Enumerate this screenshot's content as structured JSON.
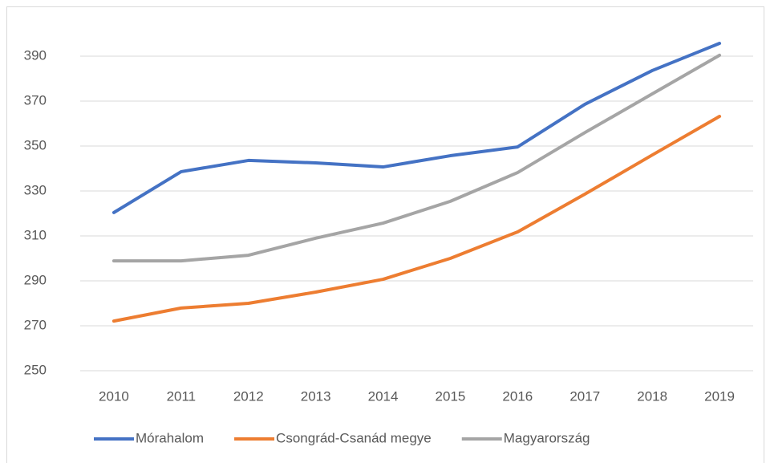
{
  "chart_data": {
    "type": "line",
    "categories": [
      "2010",
      "2011",
      "2012",
      "2013",
      "2014",
      "2015",
      "2016",
      "2017",
      "2018",
      "2019"
    ],
    "series": [
      {
        "name": "Mórahalom",
        "color": "#4472c4",
        "values": [
          320.4,
          338.6,
          343.6,
          342.5,
          340.7,
          345.7,
          349.6,
          368.6,
          383.6,
          395.7
        ]
      },
      {
        "name": "Csongrád-Csanád megye",
        "color": "#ed7d31",
        "values": [
          272.1,
          277.9,
          280,
          285,
          290.7,
          300,
          311.8,
          328.6,
          346,
          363.2
        ]
      },
      {
        "name": "Magyarország",
        "color": "#a5a5a5",
        "values": [
          298.9,
          298.9,
          301.4,
          309,
          315.7,
          325.4,
          338.2,
          356,
          373.2,
          390.4
        ]
      }
    ],
    "ylim": [
      250,
      410
    ],
    "yticks": [
      250,
      270,
      290,
      310,
      330,
      350,
      370,
      390
    ],
    "grid": true,
    "legend": "bottom"
  }
}
